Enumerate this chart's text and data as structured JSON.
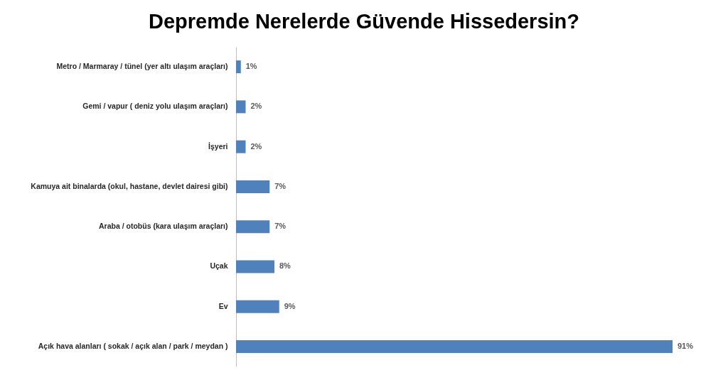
{
  "chart_data": {
    "type": "bar",
    "orientation": "horizontal",
    "title": "Depremde Nerelerde Güvende Hissedersin?",
    "categories": [
      "Metro / Marmaray / tünel (yer altı ulaşım araçları)",
      "Gemi / vapur ( deniz yolu ulaşım araçları)",
      "İşyeri",
      "Kamuya ait binalarda (okul, hastane, devlet dairesi gibi)",
      "Araba / otobüs (kara ulaşım araçları)",
      "Uçak",
      "Ev",
      "Açık hava alanları ( sokak / açık alan / park / meydan )"
    ],
    "values": [
      1,
      2,
      2,
      7,
      7,
      8,
      9,
      91
    ],
    "value_labels": [
      "1%",
      "2%",
      "2%",
      "7%",
      "7%",
      "8%",
      "9%",
      "91%"
    ],
    "color": "#4f81bd"
  }
}
